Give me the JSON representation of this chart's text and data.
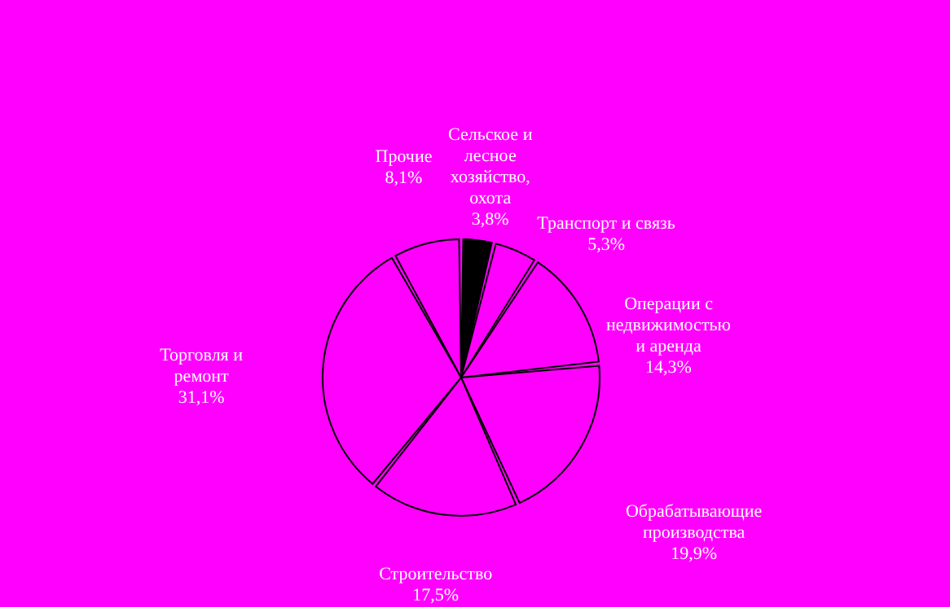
{
  "chart_data": {
    "type": "pie",
    "categories": [
      "Сельское и лесное хозяйство, охота",
      "Транспорт и связь",
      "Операции с недвижимостью и аренда",
      "Обрабатывающие производства",
      "Строительство",
      "Торговля и ремонт",
      "Прочие"
    ],
    "values": [
      3.8,
      5.3,
      14.3,
      19.9,
      17.5,
      31.1,
      8.1
    ],
    "value_labels": [
      "3,8%",
      "5,3%",
      "14,3%",
      "19,9%",
      "17,5%",
      "31,1%",
      "8,1%"
    ],
    "colors": [
      "#000000",
      "#ff00ff",
      "#ff00ff",
      "#ff00ff",
      "#ff00ff",
      "#ff00ff",
      "#ff00ff"
    ]
  }
}
